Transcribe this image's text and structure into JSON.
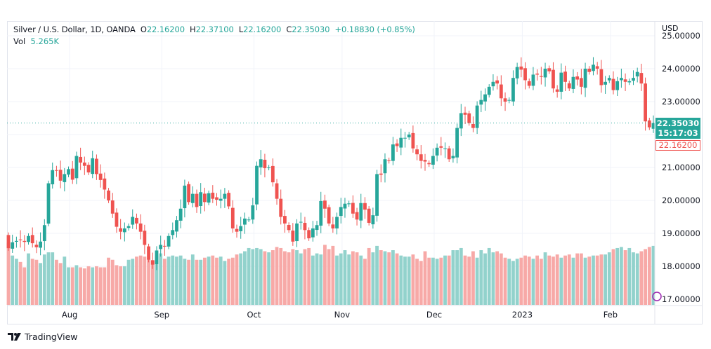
{
  "legend": {
    "symbol": "Silver / U.S. Dollar, 1D, OANDA",
    "open_label": "O",
    "open": "22.16200",
    "high_label": "H",
    "high": "22.37100",
    "low_label": "L",
    "low": "22.16200",
    "close_label": "C",
    "close": "22.35030",
    "change": "+0.18830 (+0.85%)",
    "vol_label": "Vol",
    "vol": "5.265K"
  },
  "price_axis": {
    "currency": "USD",
    "current_price": "22.35030",
    "countdown": "15:17:03",
    "low_price": "22.16200"
  },
  "brand": "TradingView",
  "colors": {
    "up": "#26a69a",
    "down": "#ef5350",
    "up_vol": "#92d2cc",
    "down_vol": "#f7a9a7"
  },
  "chart_data": {
    "type": "candlestick",
    "title": "Silver / U.S. Dollar, 1D, OANDA",
    "ylabel": "USD",
    "ylim": [
      16.9,
      25.1
    ],
    "y_ticks": [
      "17.00000",
      "18.00000",
      "19.00000",
      "20.00000",
      "21.00000",
      "22.00000",
      "23.00000",
      "24.00000",
      "25.00000"
    ],
    "y_tick_values": [
      17,
      18,
      19,
      20,
      21,
      22,
      23,
      24,
      25
    ],
    "x_ticks": [
      "Aug",
      "Sep",
      "Oct",
      "Nov",
      "Dec",
      "2023",
      "Feb"
    ],
    "x_tick_bar_index": [
      13,
      36,
      59,
      81,
      104,
      126,
      148
    ],
    "closes": [
      18.55,
      18.73,
      18.77,
      18.8,
      18.74,
      18.92,
      18.7,
      18.58,
      18.75,
      19.25,
      20.52,
      20.92,
      20.9,
      20.6,
      20.8,
      20.95,
      20.63,
      21.35,
      21.15,
      21.05,
      20.85,
      21.28,
      20.8,
      20.62,
      20.33,
      20.0,
      19.6,
      19.2,
      19.05,
      19.15,
      19.22,
      19.5,
      19.3,
      19.05,
      18.65,
      18.2,
      18.05,
      18.48,
      18.65,
      18.6,
      18.92,
      19.1,
      19.4,
      19.75,
      20.45,
      19.95,
      20.2,
      19.8,
      20.25,
      19.95,
      20.22,
      20.05,
      20.02,
      20.05,
      20.2,
      19.82,
      19.15,
      19.05,
      19.22,
      19.45,
      19.42,
      19.85,
      21.05,
      21.25,
      20.98,
      21.0,
      20.55,
      20.05,
      19.5,
      19.3,
      19.1,
      18.75,
      19.3,
      19.35,
      19.1,
      18.85,
      19.15,
      19.25,
      19.98,
      19.75,
      19.3,
      19.15,
      19.5,
      19.8,
      19.9,
      19.91,
      19.6,
      19.42,
      19.92,
      19.72,
      19.32,
      19.55,
      20.8,
      20.78,
      21.25,
      21.2,
      21.7,
      21.65,
      21.9,
      21.9,
      22.0,
      21.58,
      21.4,
      21.2,
      21.18,
      21.1,
      21.35,
      21.6,
      21.6,
      21.58,
      21.25,
      21.35,
      22.2,
      22.65,
      22.6,
      22.35,
      22.2,
      22.88,
      23.05,
      23.22,
      23.45,
      23.6,
      23.55,
      23.1,
      23.0,
      23.05,
      23.72,
      24.05,
      23.97,
      23.65,
      23.48,
      23.82,
      23.82,
      23.75,
      24.0,
      23.92,
      23.4,
      23.3,
      23.88,
      23.6,
      23.4,
      23.75,
      23.67,
      23.45,
      24.0,
      23.9,
      24.12,
      24.0,
      23.5,
      23.6,
      23.72,
      23.35,
      23.62,
      23.72,
      23.6,
      23.62,
      23.72,
      23.9,
      23.55,
      22.4,
      22.22,
      22.35
    ],
    "volumes_k": [
      5.8,
      4.6,
      4.3,
      4.0,
      3.5,
      4.8,
      4.3,
      4.2,
      3.9,
      4.7,
      4.9,
      4.9,
      4.2,
      3.9,
      4.5,
      3.5,
      3.5,
      3.7,
      3.5,
      3.4,
      3.6,
      3.5,
      3.6,
      3.5,
      3.5,
      4.4,
      4.2,
      3.7,
      3.6,
      3.6,
      4.2,
      4.3,
      4.5,
      4.6,
      4.5,
      4.3,
      4.1,
      4.6,
      4.8,
      4.3,
      4.5,
      4.6,
      4.5,
      4.6,
      4.3,
      4.2,
      4.7,
      4.2,
      4.2,
      4.4,
      4.5,
      4.6,
      4.4,
      4.5,
      4.1,
      4.3,
      4.4,
      4.7,
      4.8,
      5.0,
      5.3,
      5.2,
      5.3,
      5.2,
      5.0,
      4.9,
      5.1,
      5.4,
      5.3,
      5.0,
      4.9,
      5.2,
      5.1,
      4.8,
      5.2,
      5.3,
      4.6,
      4.8,
      4.7,
      5.6,
      5.2,
      5.5,
      4.6,
      4.8,
      5.1,
      4.7,
      5.0,
      4.9,
      4.6,
      4.3,
      5.3,
      4.9,
      5.5,
      5.1,
      5.0,
      4.9,
      5.1,
      4.8,
      4.6,
      4.5,
      4.5,
      4.7,
      4.3,
      4.1,
      5.0,
      4.4,
      4.4,
      4.3,
      4.4,
      4.6,
      4.6,
      5.1,
      5.1,
      5.3,
      4.6,
      4.5,
      5.0,
      4.4,
      5.1,
      4.8,
      5.3,
      4.9,
      5.0,
      4.8,
      4.4,
      4.3,
      4.1,
      4.3,
      4.4,
      4.6,
      4.5,
      4.3,
      4.6,
      4.3,
      4.9,
      4.6,
      4.5,
      4.7,
      4.4,
      4.6,
      4.7,
      4.4,
      4.8,
      4.8,
      4.4,
      4.5,
      4.6,
      4.6,
      4.7,
      4.7,
      4.9,
      5.2,
      5.3,
      5.4,
      5.1,
      5.3,
      4.9,
      4.8,
      5.0,
      5.2,
      5.4,
      5.5,
      5.3,
      5.0,
      5.265
    ]
  }
}
